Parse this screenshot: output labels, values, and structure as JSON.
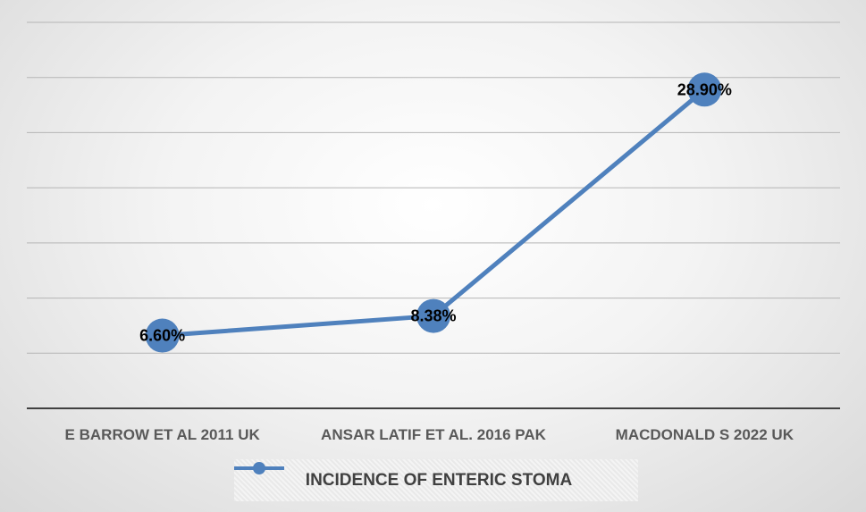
{
  "chart_data": {
    "type": "line",
    "categories": [
      "E BARROW ET AL 2011 UK",
      "ANSAR LATIF ET AL. 2016 PAK",
      "MACDONALD S 2022 UK"
    ],
    "series": [
      {
        "name": "INCIDENCE OF ENTERIC STOMA",
        "values": [
          6.6,
          8.38,
          28.9
        ],
        "labels": [
          "6.60%",
          "8.38%",
          "28.90%"
        ]
      }
    ],
    "ylim": [
      0,
      35
    ],
    "grid": true,
    "legend": "bottom",
    "colors": {
      "line": "#4f81bd",
      "marker": "#4f81bd",
      "axis": "#404040",
      "grid": "#b5b5b5"
    }
  }
}
